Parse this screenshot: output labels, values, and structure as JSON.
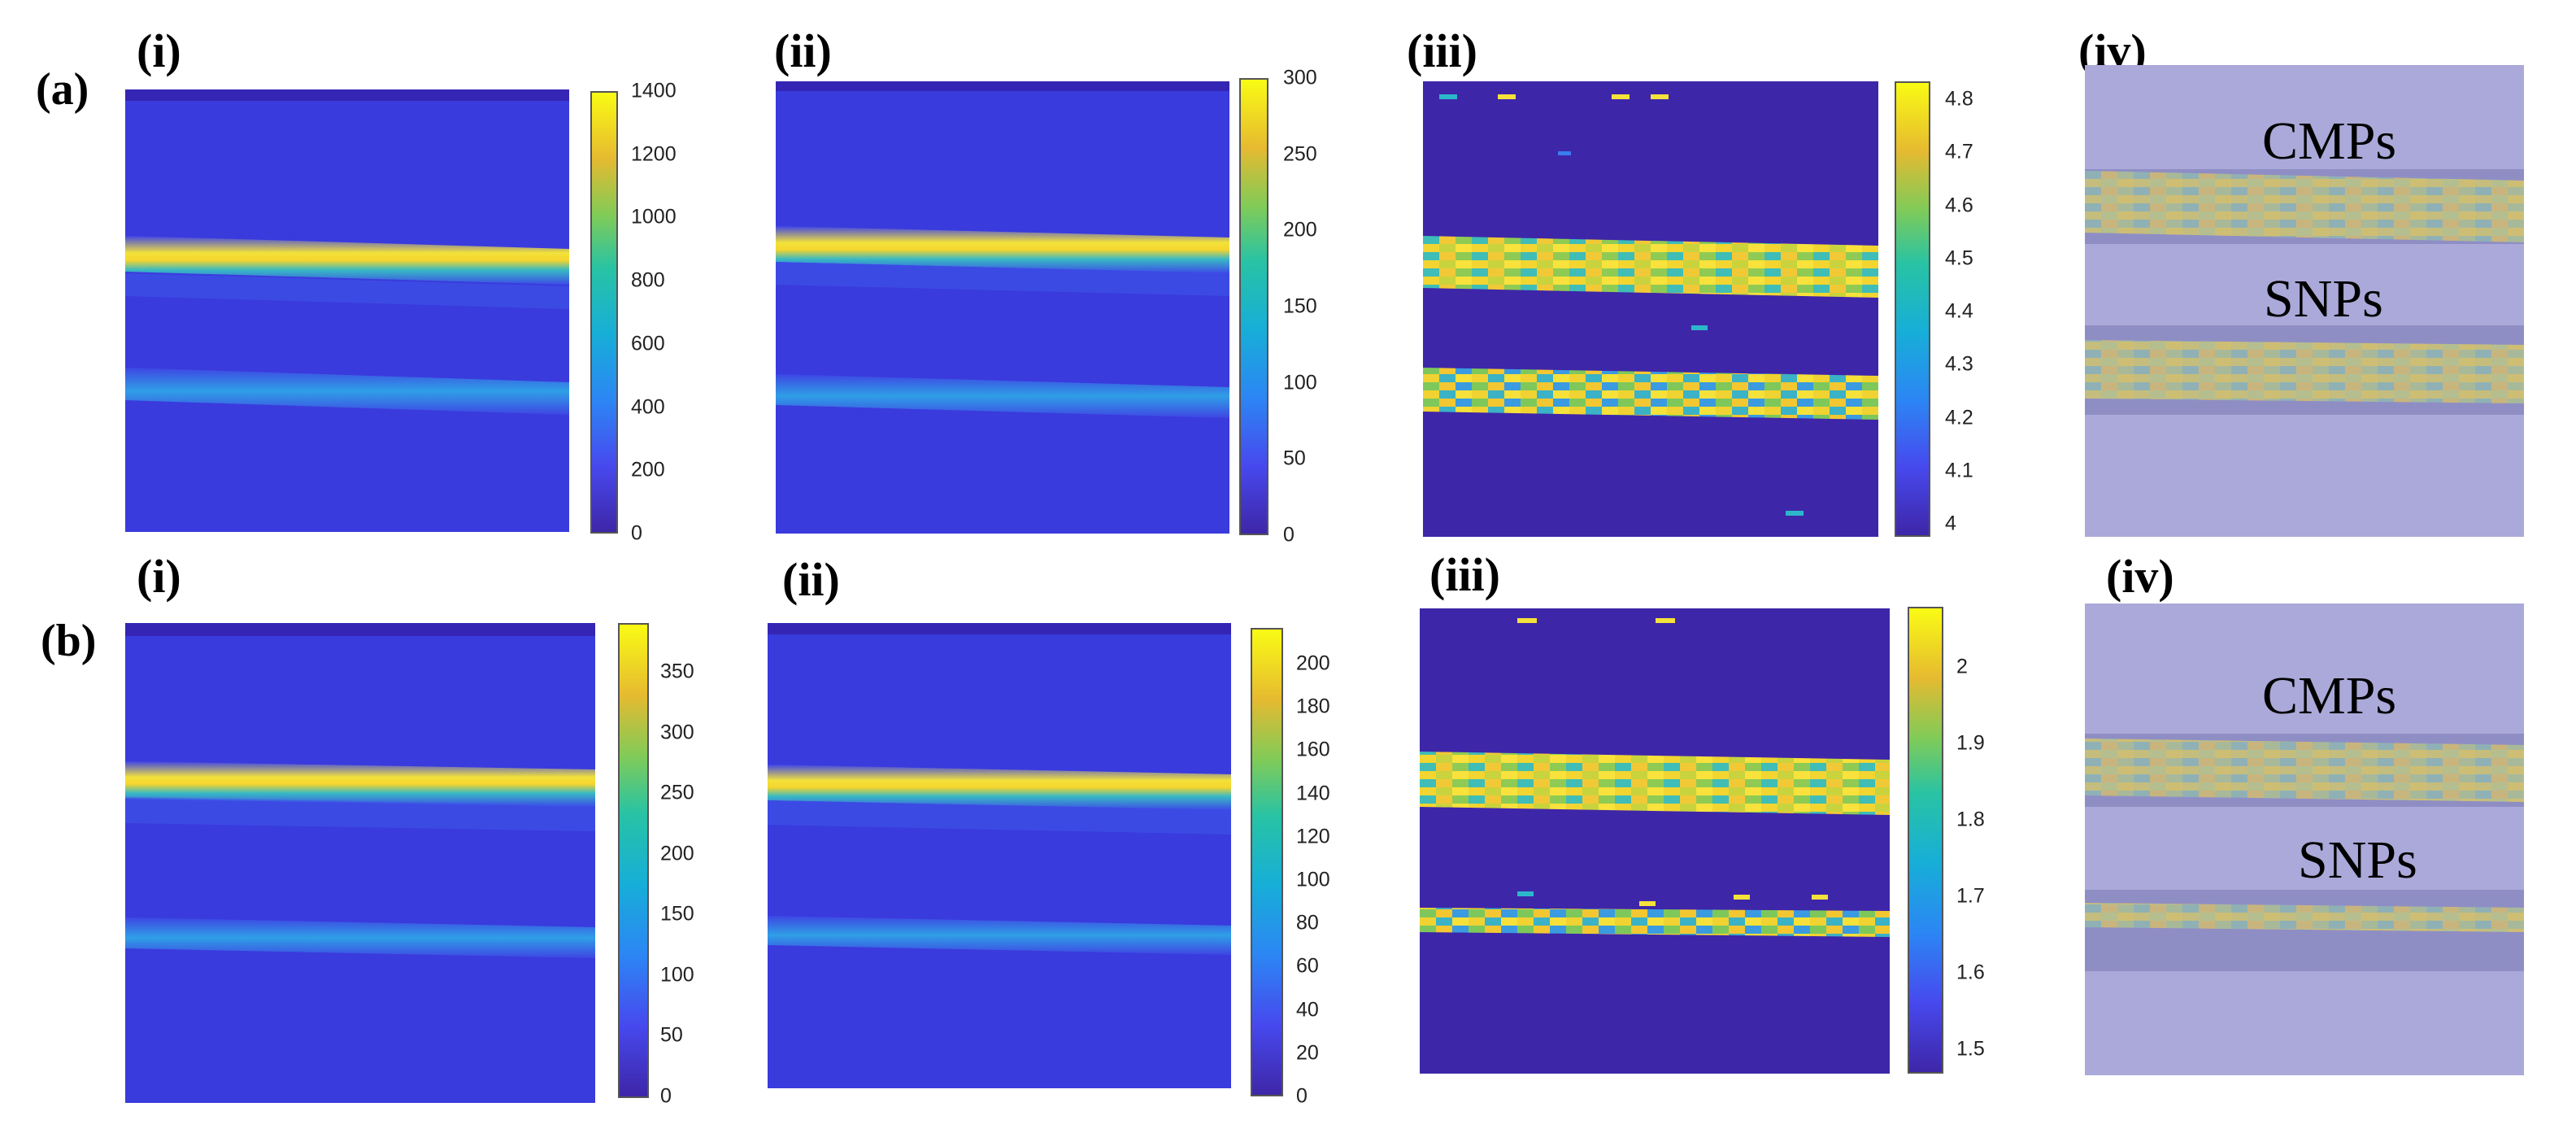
{
  "rows": [
    {
      "label": "(a)",
      "panels": [
        {
          "label": "(i)",
          "colorbar_ticks": [
            "1400",
            "1200",
            "1000",
            "800",
            "600",
            "400",
            "200",
            "0"
          ]
        },
        {
          "label": "(ii)",
          "colorbar_ticks": [
            "300",
            "250",
            "200",
            "150",
            "100",
            "50",
            "0"
          ]
        },
        {
          "label": "(iii)",
          "colorbar_ticks": [
            "4.8",
            "4.7",
            "4.6",
            "4.5",
            "4.4",
            "4.3",
            "4.2",
            "4.1",
            "4"
          ]
        },
        {
          "label": "(iv)",
          "text_top": "CMPs",
          "text_bottom": "SNPs"
        }
      ]
    },
    {
      "label": "(b)",
      "panels": [
        {
          "label": "(i)",
          "colorbar_ticks": [
            "350",
            "300",
            "250",
            "200",
            "150",
            "100",
            "50",
            "0"
          ]
        },
        {
          "label": "(ii)",
          "colorbar_ticks": [
            "200",
            "180",
            "160",
            "140",
            "120",
            "100",
            "80",
            "60",
            "40",
            "20",
            "0"
          ]
        },
        {
          "label": "(iii)",
          "colorbar_ticks": [
            "2",
            "1.9",
            "1.8",
            "1.7",
            "1.6",
            "1.5"
          ]
        },
        {
          "label": "(iv)",
          "text_top": "CMPs",
          "text_bottom": "SNPs"
        }
      ]
    }
  ],
  "colors": {
    "background_map": "#3a3bdc",
    "background_dark": "#3e26a8",
    "photo_tint": "#a9a8d8",
    "band_yellow": "#f5e23a",
    "band_cyan": "#2bb7c9"
  }
}
